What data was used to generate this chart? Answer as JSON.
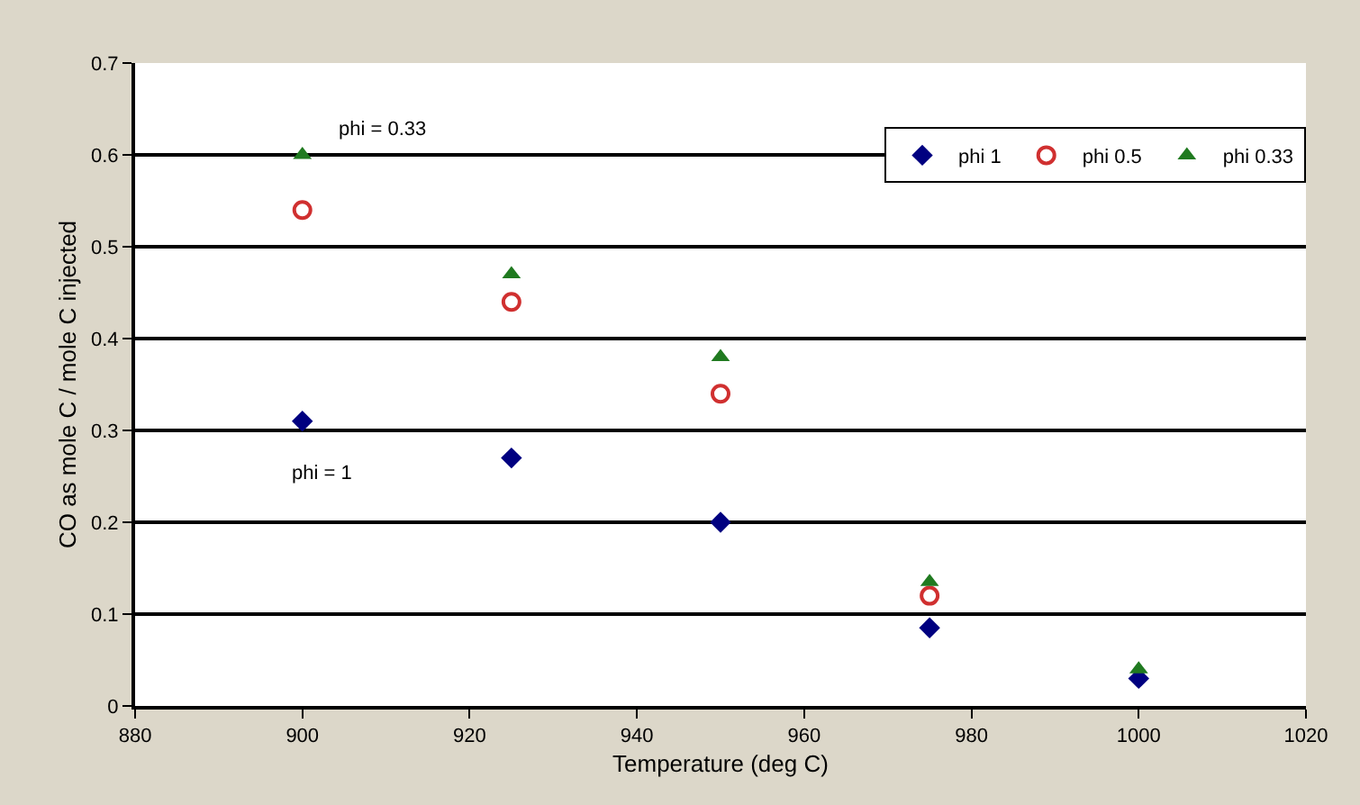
{
  "chart_data": {
    "type": "scatter",
    "xlabel": "Temperature (deg C)",
    "ylabel": "CO as mole C / mole C injected",
    "x": [
      900,
      925,
      950,
      975,
      1000
    ],
    "series": [
      {
        "name": "phi 1",
        "color": "#000080",
        "marker": "diamond",
        "values": [
          0.31,
          0.27,
          0.2,
          0.085,
          0.03
        ]
      },
      {
        "name": "phi 0.5",
        "color": "#d03030",
        "marker": "circle-open",
        "values": [
          0.54,
          0.44,
          0.34,
          0.12,
          null
        ]
      },
      {
        "name": "phi 0.33",
        "color": "#207a20",
        "marker": "triangle",
        "values": [
          0.6,
          0.47,
          0.38,
          0.135,
          0.04
        ]
      }
    ],
    "annotations": [
      "phi = 0.33",
      "phi = 1"
    ],
    "xlim": [
      880,
      1020
    ],
    "xticks": [
      880,
      900,
      920,
      940,
      960,
      980,
      1000,
      1020
    ],
    "ylim": [
      0,
      0.7
    ],
    "yticks": [
      0,
      0.1,
      0.2,
      0.3,
      0.4,
      0.5,
      0.6,
      0.7
    ],
    "grid": "y",
    "legend": "top right"
  }
}
